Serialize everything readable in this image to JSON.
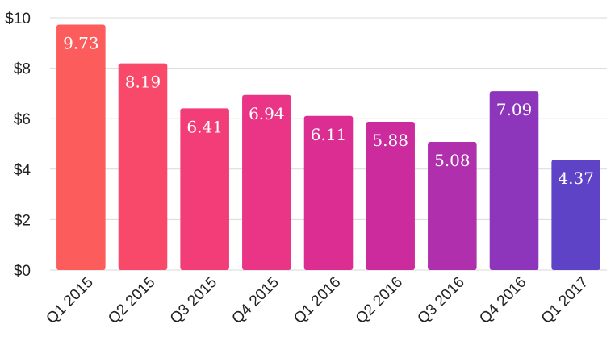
{
  "chart_data": {
    "type": "bar",
    "categories": [
      "Q1 2015",
      "Q2 2015",
      "Q3 2015",
      "Q4 2015",
      "Q1 2016",
      "Q2 2016",
      "Q3 2016",
      "Q4 2016",
      "Q1 2017"
    ],
    "values": [
      9.73,
      8.19,
      6.41,
      6.94,
      6.11,
      5.88,
      5.08,
      7.09,
      4.37
    ],
    "data_labels": [
      "9.73",
      "8.19",
      "6.41",
      "6.94",
      "6.11",
      "5.88",
      "5.08",
      "7.09",
      "4.37"
    ],
    "y_ticks": [
      0,
      2,
      4,
      6,
      8,
      10
    ],
    "y_tick_labels": [
      "$0",
      "$2",
      "$4",
      "$6",
      "$8",
      "$10"
    ],
    "ylim": [
      0,
      10
    ],
    "title": "",
    "xlabel": "",
    "ylabel": "",
    "grid": true,
    "legend": "none",
    "bar_colors": [
      "#fd5c5c",
      "#f9496a",
      "#f23d78",
      "#ea3586",
      "#dc2e92",
      "#cc2b9e",
      "#b02fac",
      "#8e36bb",
      "#5f43c6"
    ]
  }
}
